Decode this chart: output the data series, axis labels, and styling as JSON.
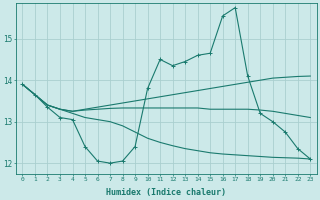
{
  "xlabel": "Humidex (Indice chaleur)",
  "background_color": "#cce9e9",
  "grid_color": "#aacfcf",
  "line_color": "#1a7a6e",
  "xlim": [
    -0.5,
    23.5
  ],
  "ylim": [
    11.75,
    15.85
  ],
  "yticks": [
    12,
    13,
    14,
    15
  ],
  "xticks": [
    0,
    1,
    2,
    3,
    4,
    5,
    6,
    7,
    8,
    9,
    10,
    11,
    12,
    13,
    14,
    15,
    16,
    17,
    18,
    19,
    20,
    21,
    22,
    23
  ],
  "line1_x": [
    0,
    1,
    2,
    3,
    4,
    5,
    6,
    7,
    8,
    9,
    10,
    11,
    12,
    13,
    14,
    15,
    16,
    17,
    18,
    19,
    20,
    21,
    22,
    23
  ],
  "line1_y": [
    13.9,
    13.65,
    13.35,
    13.1,
    13.05,
    12.4,
    12.05,
    12.0,
    12.05,
    12.4,
    13.8,
    14.5,
    14.35,
    14.45,
    14.6,
    14.65,
    15.55,
    15.75,
    14.1,
    13.2,
    13.0,
    12.75,
    12.35,
    12.1
  ],
  "line2_x": [
    0,
    1,
    2,
    3,
    4,
    5,
    6,
    7,
    8,
    9,
    10,
    11,
    12,
    13,
    14,
    15,
    16,
    17,
    18,
    19,
    20,
    21,
    22,
    23
  ],
  "line2_y": [
    13.9,
    13.65,
    13.4,
    13.3,
    13.25,
    13.3,
    13.35,
    13.4,
    13.45,
    13.5,
    13.55,
    13.6,
    13.65,
    13.7,
    13.75,
    13.8,
    13.85,
    13.9,
    13.95,
    14.0,
    14.05,
    14.07,
    14.09,
    14.1
  ],
  "line3_x": [
    0,
    1,
    2,
    3,
    4,
    5,
    6,
    7,
    8,
    9,
    10,
    11,
    12,
    13,
    14,
    15,
    16,
    17,
    18,
    19,
    20,
    21,
    22,
    23
  ],
  "line3_y": [
    13.9,
    13.65,
    13.4,
    13.3,
    13.25,
    13.28,
    13.3,
    13.32,
    13.33,
    13.33,
    13.33,
    13.33,
    13.33,
    13.33,
    13.33,
    13.3,
    13.3,
    13.3,
    13.3,
    13.28,
    13.25,
    13.2,
    13.15,
    13.1
  ],
  "line4_x": [
    0,
    1,
    2,
    3,
    4,
    5,
    6,
    7,
    8,
    9,
    10,
    11,
    12,
    13,
    14,
    15,
    16,
    17,
    18,
    19,
    20,
    21,
    22,
    23
  ],
  "line4_y": [
    13.9,
    13.65,
    13.4,
    13.3,
    13.2,
    13.1,
    13.05,
    13.0,
    12.9,
    12.75,
    12.6,
    12.5,
    12.42,
    12.35,
    12.3,
    12.25,
    12.22,
    12.2,
    12.18,
    12.16,
    12.14,
    12.13,
    12.12,
    12.1
  ]
}
